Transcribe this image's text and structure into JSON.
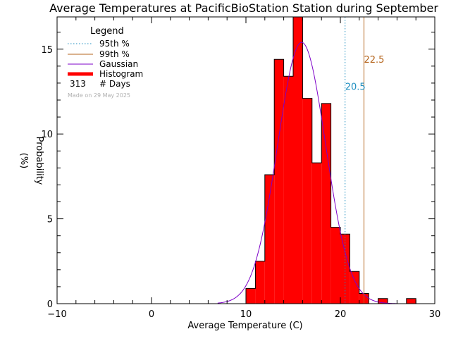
{
  "colors": {
    "histogram": "#ff0000",
    "gaussian": "#7d00c8",
    "p95": "#1f8fc0",
    "p99": "#b5651d",
    "axis": "#000000"
  },
  "chart_data": {
    "type": "bar",
    "title": "Average Temperatures at PacificBioStation Station during September",
    "xlabel": "Average Temperature (C)",
    "ylabel": "Probability\n(%)",
    "xlim": [
      -10,
      30
    ],
    "ylim": [
      0,
      16.9
    ],
    "x_ticks": [
      -10,
      0,
      10,
      20,
      30
    ],
    "y_ticks": [
      0,
      5,
      10,
      15
    ],
    "bin_width": 1,
    "bins": [
      {
        "x0": 10,
        "value": 0.9
      },
      {
        "x0": 11,
        "value": 2.5
      },
      {
        "x0": 12,
        "value": 7.6
      },
      {
        "x0": 13,
        "value": 14.4
      },
      {
        "x0": 14,
        "value": 13.4
      },
      {
        "x0": 15,
        "value": 16.9
      },
      {
        "x0": 16,
        "value": 12.1
      },
      {
        "x0": 17,
        "value": 8.3
      },
      {
        "x0": 18,
        "value": 11.8
      },
      {
        "x0": 19,
        "value": 4.5
      },
      {
        "x0": 20,
        "value": 4.1
      },
      {
        "x0": 21,
        "value": 1.9
      },
      {
        "x0": 22,
        "value": 0.6
      },
      {
        "x0": 23,
        "value": 0
      },
      {
        "x0": 24,
        "value": 0.3
      },
      {
        "x0": 25,
        "value": 0
      },
      {
        "x0": 26,
        "value": 0
      },
      {
        "x0": 27,
        "value": 0.3
      }
    ],
    "gaussian": {
      "mean": 15.9,
      "sigma": 2.55,
      "peak": 15.4
    },
    "percentiles": [
      {
        "name": "95th %",
        "value": 20.5,
        "label": "20.5"
      },
      {
        "name": "99th %",
        "value": 22.5,
        "label": "22.5"
      }
    ],
    "legend": {
      "title": "Legend",
      "placement": "top-left",
      "entries": [
        "95th %",
        "99th %",
        "Gaussian",
        "Histogram"
      ],
      "days_count": "313",
      "days_label": "# Days",
      "made_on": "Made on 29 May 2025"
    },
    "grid": false
  }
}
